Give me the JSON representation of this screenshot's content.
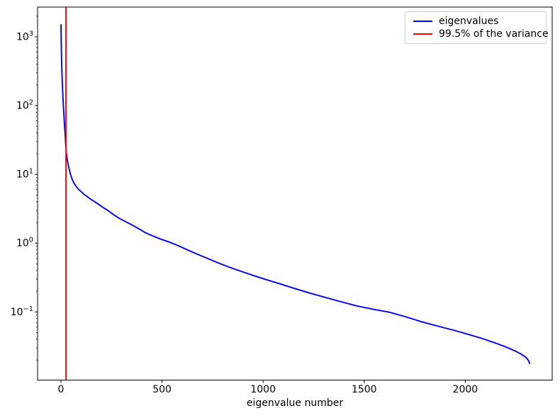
{
  "chart_data": {
    "type": "line",
    "title": "",
    "xlabel": "eigenvalue number",
    "ylabel": "",
    "grid": false,
    "x_axis": {
      "ticks": [
        0,
        500,
        1000,
        1500,
        2000
      ],
      "lim": [
        -115.7,
        2430
      ]
    },
    "y_axis": {
      "scale": "log",
      "tick_exponents": [
        3,
        2,
        1,
        0,
        -1
      ],
      "minor_tick_decades": [
        -2,
        -1,
        0,
        1,
        2,
        3
      ],
      "lim": [
        0.0102,
        2710
      ]
    },
    "legend": {
      "position": "upper-right",
      "entries": [
        {
          "label": "eigenvalues",
          "color": "#0000ff"
        },
        {
          "label": "99.5% of the variance",
          "color": "#ff0000"
        }
      ]
    },
    "vline": {
      "x": 25,
      "color": "#ff0000",
      "meaning": "99.5% of the variance"
    },
    "series": [
      {
        "name": "eigenvalues",
        "color": "#0000ff",
        "points": [
          [
            0,
            1500
          ],
          [
            1,
            950
          ],
          [
            2,
            640
          ],
          [
            3,
            470
          ],
          [
            4,
            370
          ],
          [
            5,
            295
          ],
          [
            6,
            240
          ],
          [
            8,
            172
          ],
          [
            10,
            128
          ],
          [
            12,
            98
          ],
          [
            14,
            77
          ],
          [
            16,
            62
          ],
          [
            18,
            50
          ],
          [
            20,
            41
          ],
          [
            22,
            32
          ],
          [
            25,
            22.5
          ],
          [
            28,
            19
          ],
          [
            32,
            16
          ],
          [
            36,
            13.8
          ],
          [
            40,
            12.2
          ],
          [
            45,
            10.6
          ],
          [
            50,
            9.4
          ],
          [
            57,
            8.3
          ],
          [
            65,
            7.4
          ],
          [
            75,
            6.7
          ],
          [
            85,
            6.15
          ],
          [
            100,
            5.6
          ],
          [
            115,
            5.1
          ],
          [
            132,
            4.7
          ],
          [
            150,
            4.3
          ],
          [
            170,
            3.95
          ],
          [
            190,
            3.6
          ],
          [
            212,
            3.25
          ],
          [
            235,
            2.95
          ],
          [
            260,
            2.6
          ],
          [
            290,
            2.28
          ],
          [
            320,
            2.05
          ],
          [
            350,
            1.85
          ],
          [
            385,
            1.62
          ],
          [
            417,
            1.42
          ],
          [
            455,
            1.27
          ],
          [
            495,
            1.14
          ],
          [
            535,
            1.04
          ],
          [
            580,
            0.92
          ],
          [
            625,
            0.8
          ],
          [
            675,
            0.69
          ],
          [
            725,
            0.6
          ],
          [
            775,
            0.52
          ],
          [
            830,
            0.45
          ],
          [
            890,
            0.39
          ],
          [
            950,
            0.34
          ],
          [
            1015,
            0.295
          ],
          [
            1080,
            0.258
          ],
          [
            1150,
            0.222
          ],
          [
            1225,
            0.19
          ],
          [
            1300,
            0.165
          ],
          [
            1380,
            0.142
          ],
          [
            1460,
            0.123
          ],
          [
            1540,
            0.11
          ],
          [
            1625,
            0.099
          ],
          [
            1705,
            0.085
          ],
          [
            1790,
            0.071
          ],
          [
            1875,
            0.061
          ],
          [
            1950,
            0.0535
          ],
          [
            2025,
            0.0462
          ],
          [
            2090,
            0.0405
          ],
          [
            2150,
            0.0352
          ],
          [
            2200,
            0.031
          ],
          [
            2245,
            0.0272
          ],
          [
            2275,
            0.0245
          ],
          [
            2295,
            0.0224
          ],
          [
            2305,
            0.021
          ],
          [
            2312,
            0.0197
          ],
          [
            2316,
            0.0186
          ],
          [
            2318,
            0.0178
          ]
        ]
      }
    ]
  }
}
